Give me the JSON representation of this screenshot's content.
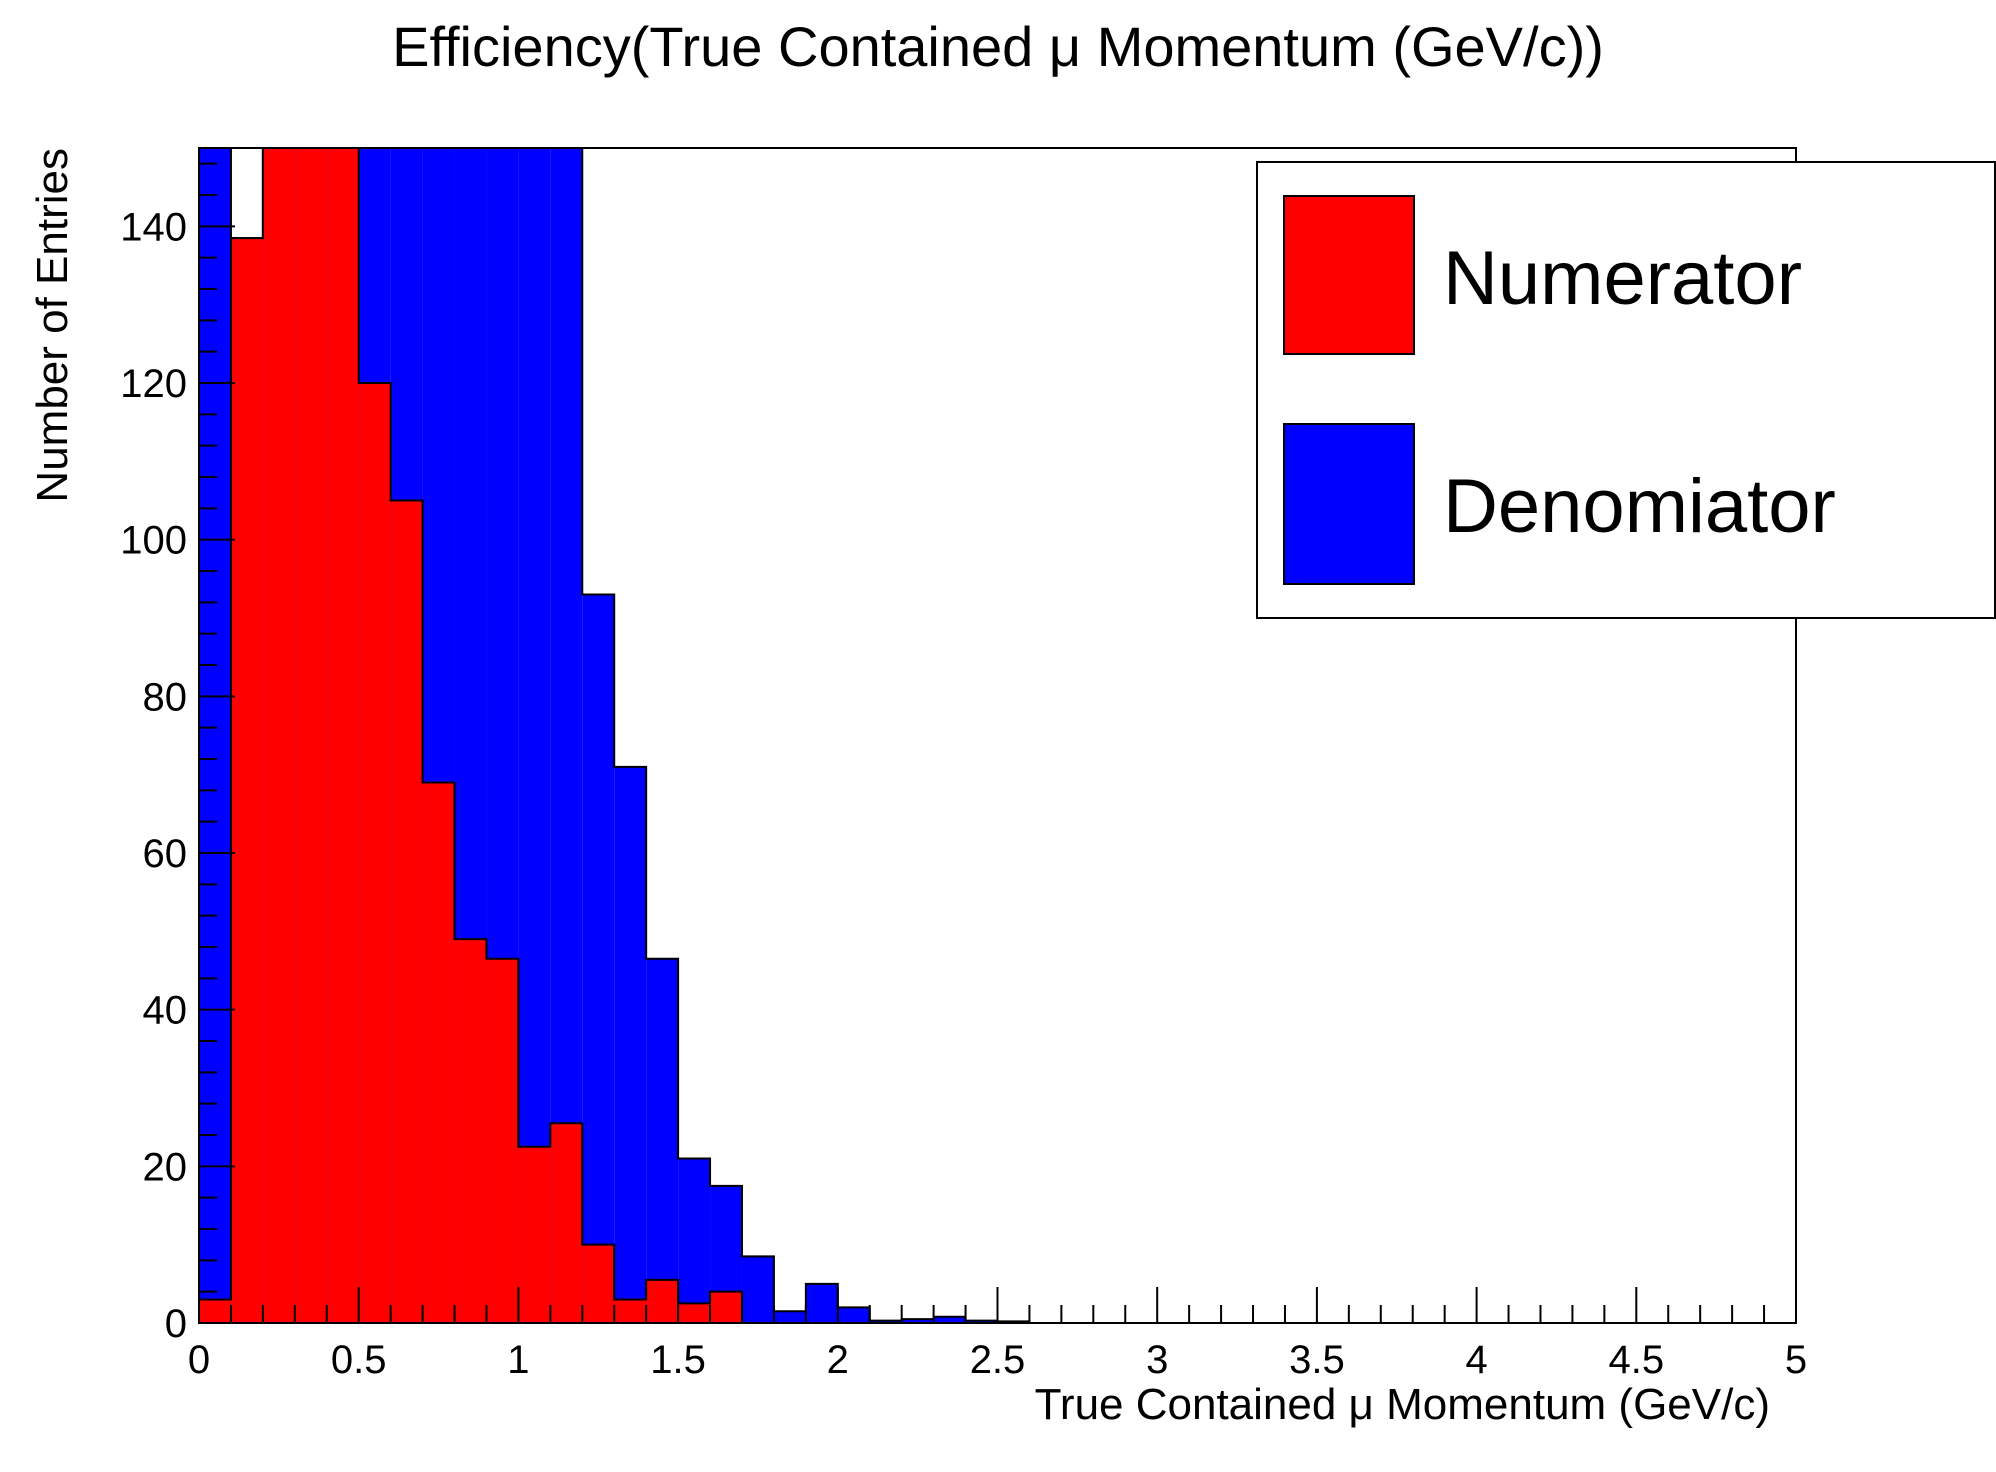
{
  "chart_data": {
    "type": "bar",
    "title": "Efficiency(True Contained μ Momentum (GeV/c))",
    "xlabel": "True Contained μ Momentum (GeV/c)",
    "ylabel": "Number of Entries",
    "xlim": [
      0,
      5
    ],
    "ylim": [
      0,
      150
    ],
    "bin_width": 0.1,
    "x_ticks": [
      0,
      0.5,
      1,
      1.5,
      2,
      2.5,
      3,
      3.5,
      4,
      4.5,
      5
    ],
    "x_tick_labels": [
      "0",
      "0.5",
      "1",
      "1.5",
      "2",
      "2.5",
      "3",
      "3.5",
      "4",
      "4.5",
      "5"
    ],
    "y_ticks": [
      0,
      20,
      40,
      60,
      80,
      100,
      120,
      140
    ],
    "y_tick_labels": [
      "0",
      "20",
      "40",
      "60",
      "80",
      "100",
      "120",
      "140"
    ],
    "bin_edges_start": [
      0.0,
      0.1,
      0.2,
      0.3,
      0.4,
      0.5,
      0.6,
      0.7,
      0.8,
      0.9,
      1.0,
      1.1,
      1.2,
      1.3,
      1.4,
      1.5,
      1.6,
      1.7,
      1.8,
      1.9,
      2.0,
      2.1,
      2.2,
      2.3,
      2.4,
      2.5
    ],
    "grid": false,
    "legend_position": "top-right",
    "series": [
      {
        "name": "Denomiator",
        "color": "#0000ff",
        "values": [
          150,
          138.5,
          150,
          150,
          150,
          150,
          150,
          150,
          150,
          150,
          150,
          150,
          93,
          71,
          46.5,
          21,
          17.5,
          8.5,
          1.5,
          5,
          2,
          0.3,
          0.5,
          0.8,
          0.3,
          0.2
        ]
      },
      {
        "name": "Numerator",
        "color": "#ff0000",
        "values": [
          3,
          138.5,
          150,
          150,
          150,
          120,
          105,
          69,
          49,
          46.5,
          22.5,
          25.5,
          10,
          3,
          5.5,
          2.5,
          4,
          0,
          0,
          0,
          0,
          0,
          0,
          0,
          0,
          0
        ]
      }
    ]
  }
}
